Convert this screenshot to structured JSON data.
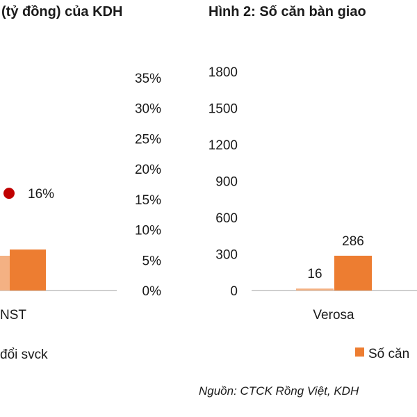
{
  "colors": {
    "series_primary": "#ED7D31",
    "series_secondary": "#F4B183",
    "growth_marker": "#C00000",
    "axis_line": "#BFBFBF"
  },
  "chart_data": [
    {
      "type": "bar",
      "title": "(tỷ đồng) của KDH",
      "categories": [
        "NST"
      ],
      "series": [
        {
          "values": [
            null
          ]
        },
        {
          "values": [
            null
          ]
        }
      ],
      "growth": {
        "name": "đổi svck",
        "values": [
          16
        ],
        "label": "16%"
      },
      "y2lim": [
        0,
        35
      ],
      "y2ticks": [
        "0%",
        "5%",
        "10%",
        "15%",
        "20%",
        "25%",
        "30%",
        "35%"
      ],
      "legend_text": "đổi svck",
      "legend_position": "bottom"
    },
    {
      "type": "bar",
      "title": "Hình 2: Số căn bàn giao",
      "categories": [
        "Verosa"
      ],
      "series": [
        {
          "values": [
            16
          ],
          "labels": [
            "16"
          ]
        },
        {
          "values": [
            286
          ],
          "labels": [
            "286"
          ]
        }
      ],
      "ylim": [
        0,
        1800
      ],
      "yticks": [
        "0",
        "300",
        "600",
        "900",
        "1200",
        "1500",
        "1800"
      ],
      "legend_text": "Số căn",
      "legend_position": "bottom",
      "grid": false
    }
  ],
  "source": "Nguồn: CTCK Rồng Việt, KDH"
}
